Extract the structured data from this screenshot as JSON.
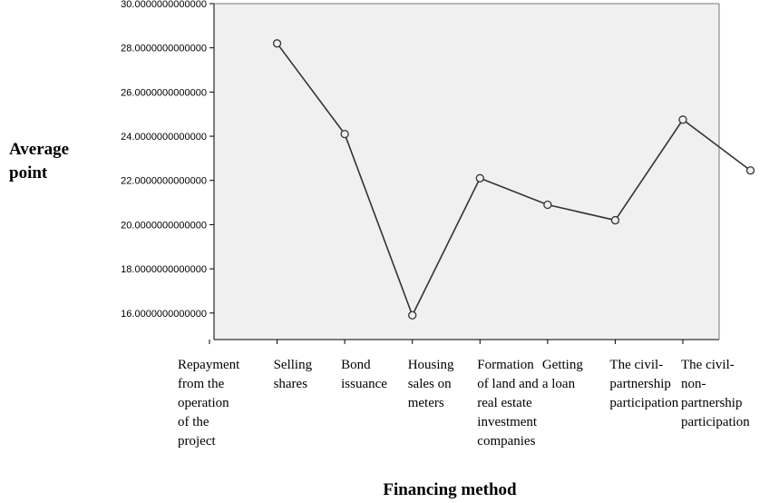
{
  "chart_data": {
    "type": "line",
    "xlabel": "Financing method",
    "ylabel": [
      "Average",
      "point"
    ],
    "ylim": [
      14.8,
      30.0
    ],
    "yticks": [
      16,
      18,
      20,
      22,
      24,
      26,
      28,
      30
    ],
    "ytick_labels": [
      "16.0000000000000",
      "18.0000000000000",
      "20.0000000000000",
      "22.0000000000000",
      "24.0000000000000",
      "26.0000000000000",
      "28.0000000000000",
      "30.0000000000000"
    ],
    "grid": false,
    "legend": "none",
    "categories": [
      [
        "Repayment",
        "from the",
        "operation",
        "of the",
        "project"
      ],
      [
        "Selling",
        "shares"
      ],
      [
        "Bond",
        "issuance"
      ],
      [
        "Housing",
        "sales on",
        "meters"
      ],
      [
        "Formation",
        "of land and",
        "real estate",
        "investment",
        "companies"
      ],
      [
        "Getting",
        "a loan"
      ],
      [
        "The civil-",
        "partnership",
        "participation"
      ],
      [
        "The civil-",
        "non-",
        "partnership",
        "participation"
      ]
    ],
    "series": [
      {
        "values": [
          28.2,
          24.1,
          15.9,
          22.1,
          20.9,
          20.2,
          24.75,
          22.45
        ]
      }
    ],
    "colors": {
      "plot_background": "#f0f0f0",
      "line": "#333333",
      "axis": "#000000"
    }
  }
}
